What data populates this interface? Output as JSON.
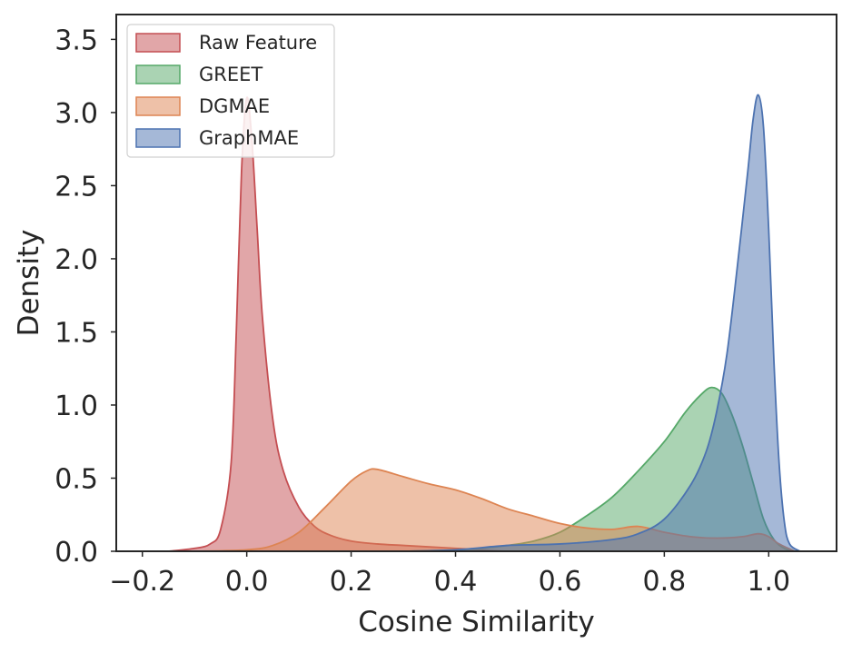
{
  "chart_data": {
    "type": "area",
    "xlabel": "Cosine Similarity",
    "ylabel": "Density",
    "xlim": [
      -0.25,
      1.13
    ],
    "ylim": [
      0,
      3.67
    ],
    "xticks": [
      -0.2,
      0.0,
      0.2,
      0.4,
      0.6,
      0.8,
      1.0
    ],
    "yticks": [
      0.0,
      0.5,
      1.0,
      1.5,
      2.0,
      2.5,
      3.0,
      3.5
    ],
    "grid": false,
    "legend_position": "top-left",
    "series": [
      {
        "name": "Raw Feature",
        "color": "#c44e52",
        "x": [
          -0.15,
          -0.1,
          -0.07,
          -0.05,
          -0.03,
          -0.02,
          -0.01,
          0.0,
          0.01,
          0.02,
          0.03,
          0.05,
          0.07,
          0.1,
          0.13,
          0.16,
          0.2,
          0.25,
          0.3,
          0.35,
          0.4,
          0.45,
          0.5,
          0.6,
          0.8,
          1.0
        ],
        "y": [
          0.0,
          0.02,
          0.05,
          0.15,
          0.6,
          1.5,
          2.6,
          3.1,
          2.8,
          2.2,
          1.6,
          0.9,
          0.55,
          0.3,
          0.17,
          0.11,
          0.07,
          0.05,
          0.04,
          0.03,
          0.02,
          0.01,
          0.0,
          0.0,
          0.0,
          0.0
        ]
      },
      {
        "name": "GREET",
        "color": "#55a868",
        "x": [
          0.2,
          0.3,
          0.4,
          0.45,
          0.5,
          0.55,
          0.6,
          0.65,
          0.7,
          0.75,
          0.8,
          0.84,
          0.87,
          0.89,
          0.91,
          0.93,
          0.95,
          0.97,
          0.99,
          1.01,
          1.03,
          1.05
        ],
        "y": [
          0.0,
          0.0,
          0.01,
          0.02,
          0.04,
          0.07,
          0.13,
          0.24,
          0.37,
          0.55,
          0.75,
          0.95,
          1.07,
          1.12,
          1.08,
          0.93,
          0.72,
          0.47,
          0.22,
          0.08,
          0.02,
          0.0
        ]
      },
      {
        "name": "DGMAE",
        "color": "#dd8452",
        "x": [
          -0.1,
          0.0,
          0.05,
          0.1,
          0.15,
          0.2,
          0.23,
          0.25,
          0.3,
          0.35,
          0.4,
          0.45,
          0.5,
          0.55,
          0.6,
          0.65,
          0.7,
          0.75,
          0.8,
          0.85,
          0.9,
          0.95,
          0.98,
          1.0,
          1.02,
          1.05
        ],
        "y": [
          0.0,
          0.01,
          0.04,
          0.13,
          0.3,
          0.48,
          0.55,
          0.56,
          0.51,
          0.46,
          0.42,
          0.36,
          0.29,
          0.24,
          0.19,
          0.16,
          0.15,
          0.17,
          0.13,
          0.1,
          0.09,
          0.1,
          0.12,
          0.1,
          0.05,
          0.0
        ]
      },
      {
        "name": "GraphMAE",
        "color": "#4c72b0",
        "x": [
          0.3,
          0.4,
          0.5,
          0.6,
          0.7,
          0.75,
          0.8,
          0.85,
          0.88,
          0.9,
          0.92,
          0.94,
          0.96,
          0.97,
          0.98,
          0.99,
          1.0,
          1.01,
          1.02,
          1.03,
          1.04,
          1.06
        ],
        "y": [
          0.0,
          0.01,
          0.04,
          0.05,
          0.08,
          0.12,
          0.22,
          0.45,
          0.68,
          0.95,
          1.35,
          1.95,
          2.6,
          2.95,
          3.12,
          2.9,
          2.2,
          1.3,
          0.6,
          0.2,
          0.05,
          0.0
        ]
      }
    ]
  }
}
